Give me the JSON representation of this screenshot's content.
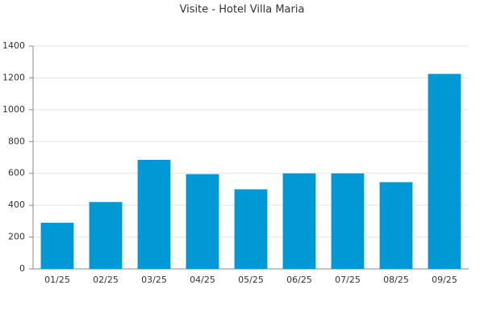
{
  "chart_data": {
    "type": "bar",
    "title": "Visite - Hotel Villa Maria",
    "categories": [
      "01/25",
      "02/25",
      "03/25",
      "04/25",
      "05/25",
      "06/25",
      "07/25",
      "08/25",
      "09/25"
    ],
    "values": [
      290,
      420,
      685,
      595,
      500,
      600,
      600,
      545,
      1225
    ],
    "color": "#0099d6",
    "ylim": [
      0,
      1400
    ],
    "yticks": [
      0,
      200,
      400,
      600,
      800,
      1000,
      1200,
      1400
    ],
    "grid": true
  }
}
